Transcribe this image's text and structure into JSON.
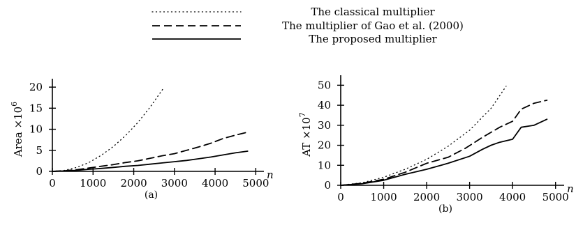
{
  "legend": [
    {
      "label": "The classical multiplier",
      "style": "dotted"
    },
    {
      "label": "The multiplier of Gao et al. (2000)",
      "style": "dashed"
    },
    {
      "label": "The proposed multiplier",
      "style": "solid"
    }
  ],
  "chart_data": [
    {
      "type": "line",
      "caption": "(a)",
      "ylabel": "Area ×10",
      "ylabel_exp": "6",
      "xlabel": "n",
      "xlim": [
        0,
        5200
      ],
      "ylim": [
        0,
        22
      ],
      "xticks": [
        0,
        1000,
        2000,
        3000,
        4000,
        5000
      ],
      "yticks": [
        0,
        5,
        10,
        15,
        20
      ],
      "series": [
        {
          "name": "The classical multiplier",
          "style": "dotted",
          "x": [
            0,
            300,
            600,
            900,
            1200,
            1500,
            1800,
            2100,
            2400,
            2750
          ],
          "y": [
            0,
            0.24,
            0.95,
            2.1,
            3.8,
            5.9,
            8.5,
            11.6,
            15.2,
            20.0
          ]
        },
        {
          "name": "The multiplier of Gao et al. (2000)",
          "style": "dashed",
          "x": [
            0,
            300,
            600,
            900,
            1200,
            1500,
            1800,
            2100,
            2400,
            2700,
            3000,
            3300,
            3600,
            3900,
            4200,
            4500,
            4800
          ],
          "y": [
            0,
            0.15,
            0.4,
            0.8,
            1.2,
            1.6,
            2.1,
            2.5,
            3.1,
            3.7,
            4.2,
            5.0,
            5.8,
            6.7,
            7.8,
            8.6,
            9.3
          ]
        },
        {
          "name": "The proposed multiplier",
          "style": "solid",
          "x": [
            0,
            300,
            600,
            900,
            1200,
            1500,
            1800,
            2100,
            2400,
            2700,
            3000,
            3300,
            3600,
            3900,
            4200,
            4500,
            4800
          ],
          "y": [
            0,
            0.1,
            0.25,
            0.5,
            0.7,
            0.95,
            1.2,
            1.4,
            1.7,
            2.0,
            2.3,
            2.6,
            3.0,
            3.4,
            3.9,
            4.4,
            4.8
          ]
        }
      ]
    },
    {
      "type": "line",
      "caption": "(b)",
      "ylabel": "AT ×10",
      "ylabel_exp": "7",
      "xlabel": "n",
      "xlim": [
        0,
        5200
      ],
      "ylim": [
        0,
        55
      ],
      "xticks": [
        0,
        1000,
        2000,
        3000,
        4000,
        5000
      ],
      "yticks": [
        0,
        10,
        20,
        30,
        40,
        50
      ],
      "series": [
        {
          "name": "The classical multiplier",
          "style": "dotted",
          "x": [
            0,
            500,
            1000,
            1500,
            2000,
            2500,
            3000,
            3500,
            3850
          ],
          "y": [
            0,
            1.3,
            4.0,
            8.0,
            13.0,
            19.5,
            27.5,
            38.5,
            49.5
          ]
        },
        {
          "name": "The multiplier of Gao et al. (2000)",
          "style": "dashed",
          "x": [
            0,
            500,
            1000,
            1500,
            2000,
            2500,
            2900,
            3300,
            3700,
            4000,
            4200,
            4500,
            4800
          ],
          "y": [
            0,
            1.0,
            3.0,
            6.5,
            11.0,
            14.0,
            18.5,
            24.0,
            29.0,
            32.0,
            38.0,
            41.0,
            42.5
          ]
        },
        {
          "name": "The proposed multiplier",
          "style": "solid",
          "x": [
            0,
            500,
            1000,
            1500,
            2000,
            2500,
            3000,
            3300,
            3500,
            3700,
            4000,
            4200,
            4500,
            4800
          ],
          "y": [
            0,
            0.8,
            2.5,
            5.5,
            8.0,
            11.0,
            14.5,
            18.0,
            20.0,
            21.5,
            23.0,
            29.0,
            30.0,
            33.0
          ]
        }
      ]
    }
  ]
}
